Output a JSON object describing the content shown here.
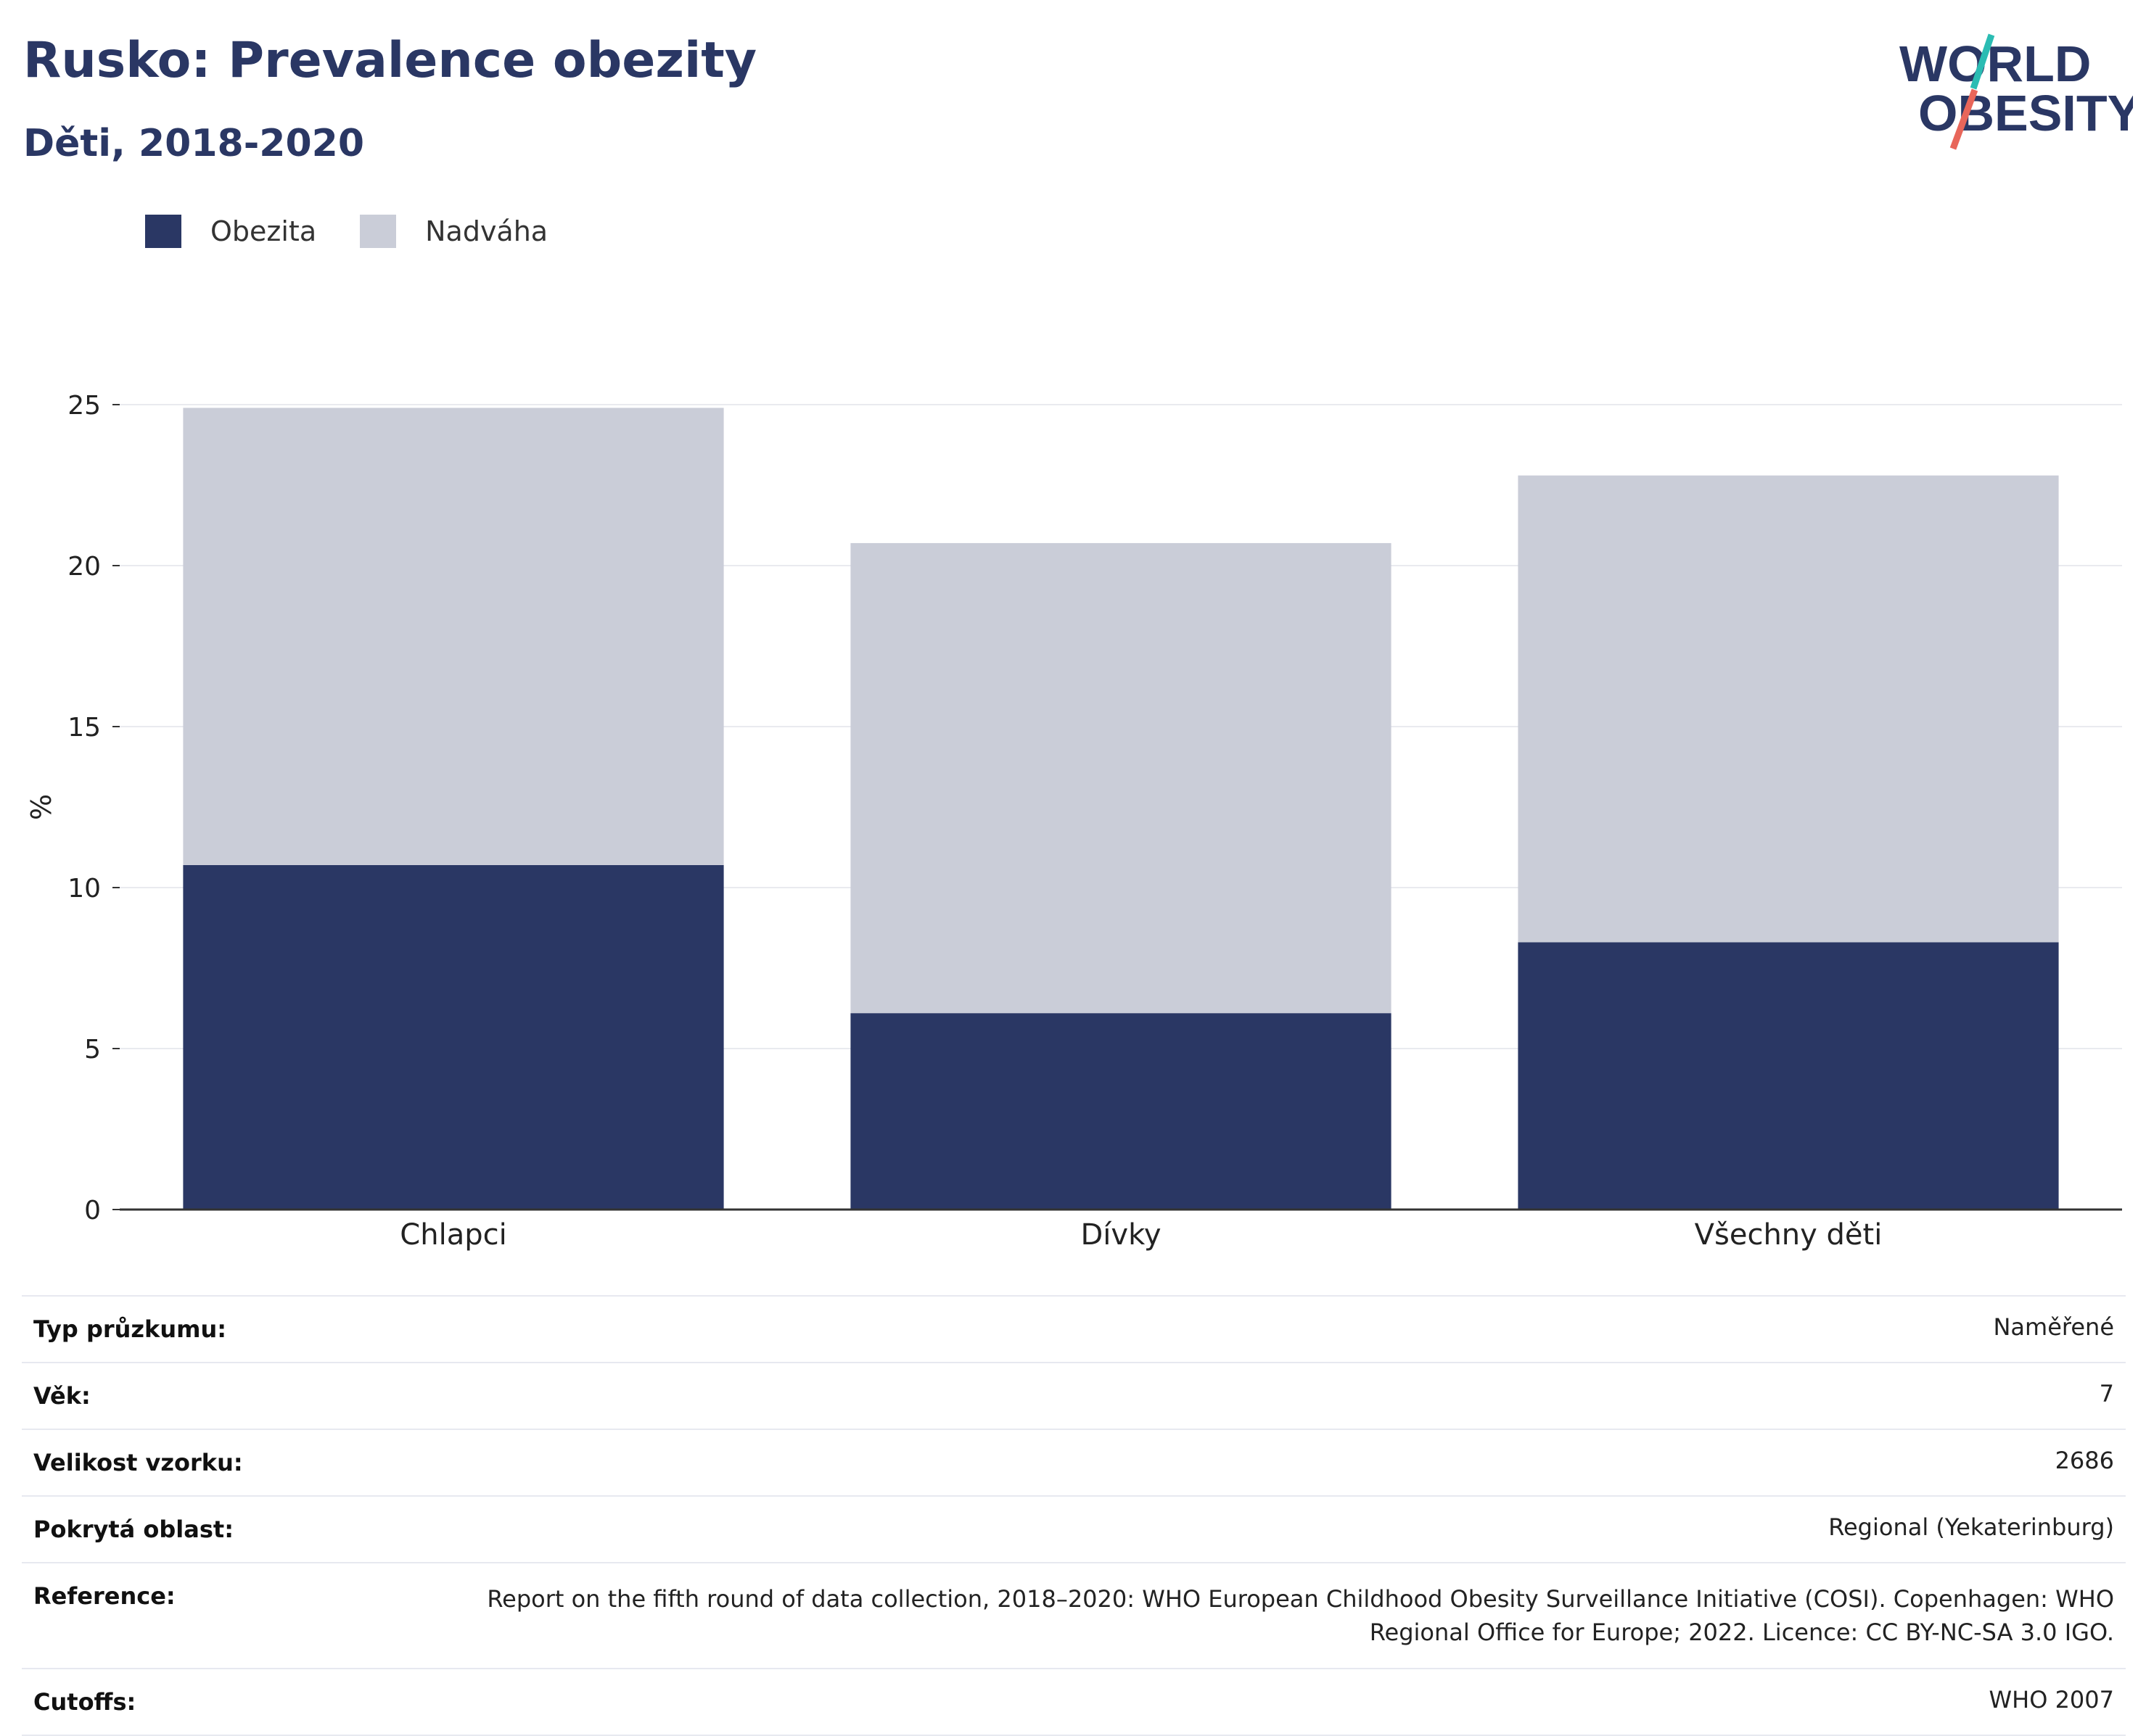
{
  "header": {
    "title": "Rusko: Prevalence obezity",
    "subtitle": "Děti, 2018-2020"
  },
  "logo": {
    "line1": "WORLD",
    "line2": "OBESITY"
  },
  "colors": {
    "obesity": "#2a3764",
    "overweight": "#cacdd8",
    "title": "#2a3764",
    "logo_teal": "#2bbcb3",
    "logo_red": "#e8665a"
  },
  "chart_data": {
    "type": "bar",
    "stacked": true,
    "categories": [
      "Chlapci",
      "Dívky",
      "Všechny děti"
    ],
    "series": [
      {
        "name": "Obezita",
        "values": [
          10.7,
          6.1,
          8.3
        ]
      },
      {
        "name": "Nadváha",
        "values": [
          14.2,
          14.6,
          14.5
        ]
      }
    ],
    "ylabel": "%",
    "ylim": [
      0,
      25
    ],
    "yticks": [
      0,
      5,
      10,
      15,
      20,
      25
    ],
    "grid": true,
    "legend_position": "top-left"
  },
  "info": [
    {
      "label": "Typ průzkumu:",
      "value": "Naměřené"
    },
    {
      "label": "Věk:",
      "value": "7"
    },
    {
      "label": "Velikost vzorku:",
      "value": "2686"
    },
    {
      "label": "Pokrytá oblast:",
      "value": "Regional (Yekaterinburg)"
    },
    {
      "label": "Reference:",
      "value": "Report on the fifth round of data collection, 2018–2020: WHO European Childhood Obesity Surveillance Initiative (COSI). Copenhagen: WHO Regional Office for Europe; 2022. Licence: CC BY-NC-SA 3.0 IGO."
    },
    {
      "label": "Cutoffs:",
      "value": "WHO 2007"
    }
  ]
}
